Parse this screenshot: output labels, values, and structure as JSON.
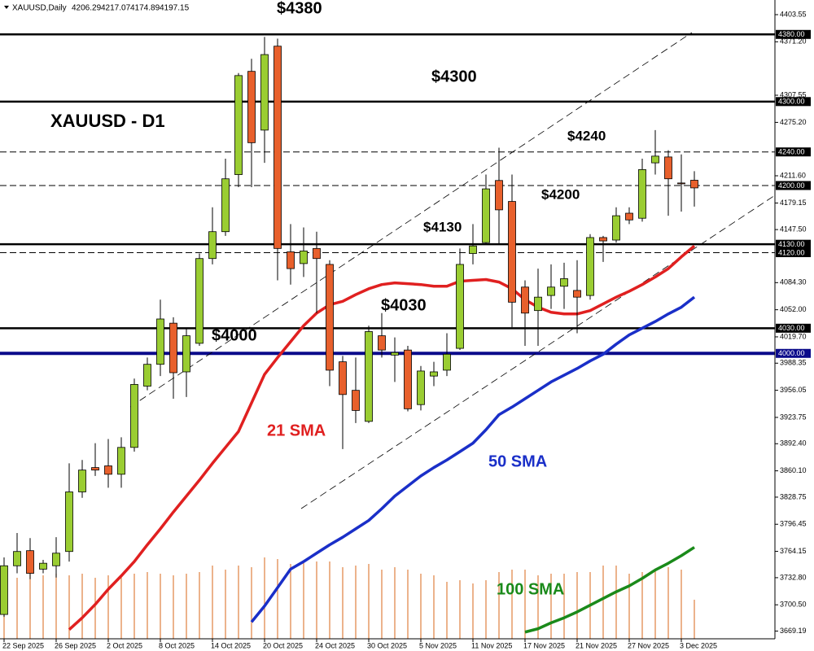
{
  "chart_data": {
    "type": "candlestick",
    "symbol": "XAUUSD,Daily",
    "title": "XAUUSD - D1",
    "categories": [
      "22 Sep 2025",
      null,
      null,
      null,
      "26 Sep 2025",
      null,
      null,
      null,
      "2 Oct 2025",
      null,
      null,
      null,
      "8 Oct 2025",
      null,
      null,
      null,
      "14 Oct 2025",
      null,
      null,
      null,
      "20 Oct 2025",
      null,
      null,
      null,
      "24 Oct 2025",
      null,
      null,
      null,
      "30 Oct 2025",
      null,
      null,
      null,
      "5 Nov 2025",
      null,
      null,
      null,
      "11 Nov 2025",
      null,
      null,
      null,
      "17 Nov 2025",
      null,
      null,
      null,
      "21 Nov 2025",
      null,
      null,
      null,
      "27 Nov 2025",
      null,
      null,
      null,
      "3 Dec 2025",
      null
    ],
    "ohlc": {
      "up_color": "#9acd32",
      "down_color": "#e8602c",
      "open": [
        3689,
        3747,
        3765,
        3743,
        3747,
        3764,
        3835,
        3864,
        3866,
        3856,
        3888,
        3961,
        3987,
        4036,
        3978,
        4012,
        4113,
        4145,
        4213,
        4336,
        4266,
        4366,
        4121,
        4107,
        4125,
        4106,
        3990,
        3956,
        3919,
        4021,
        3998,
        4004,
        3939,
        3973,
        3980,
        4006,
        4119,
        4132,
        4206,
        4181,
        4079,
        4051,
        4069,
        4080,
        4075,
        4069,
        4138,
        4135,
        4167,
        4161,
        4227,
        4234,
        4203,
        4206.29
      ],
      "high": [
        3757,
        3786,
        3780,
        3754,
        3781,
        3869,
        3873,
        3893,
        3898,
        3900,
        3970,
        3995,
        4064,
        4043,
        4029,
        4119,
        4174,
        4232,
        4334,
        4351,
        4377,
        4375,
        4154,
        4150,
        4145,
        4111,
        3997,
        3995,
        4033,
        4048,
        4019,
        4009,
        3985,
        3990,
        4024,
        4125,
        4154,
        4213,
        4245,
        4213,
        4087,
        4101,
        4106,
        4108,
        4111,
        4142,
        4140,
        4174,
        4174,
        4232,
        4266,
        4242,
        4237,
        4217.07
      ],
      "low": [
        3686,
        3738,
        3731,
        3738,
        3733,
        3752,
        3828,
        3854,
        3840,
        3840,
        3883,
        3956,
        3973,
        3946,
        3948,
        4009,
        4106,
        4140,
        4198,
        4198,
        4227,
        4087,
        4082,
        4091,
        4048,
        3961,
        3886,
        3917,
        3917,
        3995,
        3966,
        3931,
        3932,
        3961,
        3973,
        4004,
        4106,
        4130,
        4130,
        4031,
        4009,
        4009,
        4053,
        4053,
        4024,
        4064,
        4109,
        4132,
        4154,
        4157,
        4213,
        4164,
        4169,
        4174.89
      ],
      "close": [
        3747,
        3764,
        3738,
        3750,
        3762,
        3835,
        3861,
        3861,
        3856,
        3888,
        3963,
        3987,
        4041,
        3977,
        4021,
        4113,
        4145,
        4208,
        4331,
        4251,
        4356,
        4125,
        4101,
        4122,
        4113,
        3980,
        3951,
        3932,
        4026,
        4004,
        4001,
        3934,
        3979,
        3978,
        3999,
        4106,
        4128,
        4196,
        4171,
        4061,
        4048,
        4067,
        4079,
        4089,
        4067,
        4138,
        4134,
        4164,
        4159,
        4219,
        4235,
        4208,
        4202,
        4197.15
      ]
    },
    "volume": {
      "color": "#e08040",
      "values": [
        80,
        75,
        80,
        78,
        80,
        78,
        80,
        75,
        78,
        78,
        80,
        82,
        80,
        78,
        80,
        82,
        90,
        85,
        90,
        88,
        100,
        98,
        92,
        95,
        95,
        95,
        88,
        90,
        92,
        85,
        88,
        85,
        80,
        78,
        70,
        72,
        68,
        72,
        82,
        85,
        85,
        78,
        80,
        80,
        82,
        82,
        90,
        90,
        80,
        82,
        85,
        88,
        85,
        48
      ]
    },
    "series": [
      {
        "name": "21 SMA",
        "color": "#e02020",
        "values": [
          null,
          null,
          null,
          null,
          null,
          3671,
          3685,
          3701,
          3719,
          3735,
          3752,
          3772,
          3791,
          3811,
          3830,
          3849,
          3869,
          3888,
          3907,
          3941,
          3975,
          3995,
          4014,
          4033,
          4048,
          4058,
          4062,
          4070,
          4077,
          4082,
          4084,
          4083,
          4082,
          4080,
          4080,
          4086,
          4087,
          4088,
          4085,
          4077,
          4064,
          4055,
          4049,
          4047,
          4047,
          4051,
          4059,
          4067,
          4074,
          4082,
          4091,
          4101,
          4115,
          4128
        ]
      },
      {
        "name": "50 SMA",
        "color": "#1a2fc8",
        "values": [
          null,
          null,
          null,
          null,
          null,
          null,
          null,
          null,
          null,
          null,
          null,
          null,
          null,
          null,
          null,
          null,
          null,
          null,
          null,
          3680,
          3699,
          3721,
          3743,
          3752,
          3762,
          3772,
          3781,
          3791,
          3801,
          3815,
          3830,
          3842,
          3854,
          3864,
          3873,
          3883,
          3893,
          3909,
          3927,
          3936,
          3946,
          3956,
          3966,
          3974,
          3982,
          3991,
          3999,
          4011,
          4022,
          4030,
          4038,
          4047,
          4055,
          4067
        ]
      },
      {
        "name": "100 SMA",
        "color": "#1a8a1a",
        "values": [
          null,
          null,
          null,
          null,
          null,
          null,
          null,
          null,
          null,
          null,
          null,
          null,
          null,
          null,
          null,
          null,
          null,
          null,
          null,
          null,
          null,
          null,
          null,
          null,
          null,
          null,
          null,
          null,
          null,
          null,
          null,
          null,
          null,
          null,
          null,
          null,
          null,
          null,
          null,
          null,
          3668,
          3672,
          3679,
          3685,
          3692,
          3700,
          3708,
          3716,
          3723,
          3732,
          3742,
          3750,
          3759,
          3769
        ]
      }
    ],
    "levels": [
      {
        "value": 4380,
        "label": "4380.00",
        "style": "solid",
        "color": "#000000"
      },
      {
        "value": 4300,
        "label": "4300.00",
        "style": "solid",
        "color": "#000000"
      },
      {
        "value": 4240,
        "label": "4240.00",
        "style": "dashed",
        "color": "#000000"
      },
      {
        "value": 4200,
        "label": "4200.00",
        "style": "dashed",
        "color": "#000000"
      },
      {
        "value": 4130,
        "label": "4130.00",
        "style": "solid",
        "color": "#000000"
      },
      {
        "value": 4120,
        "label": "4120.00",
        "style": "dashed",
        "color": "#000000"
      },
      {
        "value": 4030,
        "label": "4030.00",
        "style": "solid",
        "color": "#000000"
      },
      {
        "value": 4000,
        "label": "4000.00",
        "style": "solid",
        "color": "#0a0a8a"
      }
    ],
    "annotations": [
      "$4380",
      "$4300",
      "$4240",
      "$4200",
      "$4130",
      "$4030",
      "$4000"
    ],
    "ylim": [
      3660,
      4421
    ],
    "yticks": [
      4403.55,
      {
        "value": 4371.2,
        "label": "4371.20"
      },
      4307.55,
      {
        "value": 4275.2,
        "label": "4275.20"
      },
      {
        "value": 4211.6,
        "label": "4211.60"
      },
      4179.15,
      {
        "value": 4147.5,
        "label": "4147.50"
      },
      {
        "value": 4084.3,
        "label": "4084.30"
      },
      {
        "value": 4052,
        "label": "4052.00"
      },
      {
        "value": 4019.7,
        "label": "4019.70"
      },
      3988.35,
      3956.05,
      3923.75,
      {
        "value": 3892.4,
        "label": "3892.40"
      },
      {
        "value": 3860.1,
        "label": "3860.10"
      },
      3828.75,
      3796.45,
      3764.15,
      {
        "value": 3732.8,
        "label": "3732.80"
      },
      {
        "value": 3700.5,
        "label": "3700.50"
      },
      3669.19
    ],
    "grid": false
  }
}
